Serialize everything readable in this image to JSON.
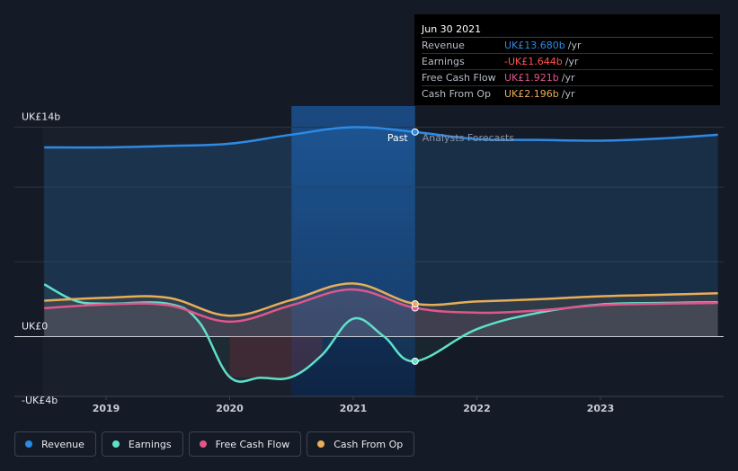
{
  "tooltip": {
    "date": "Jun 30 2021",
    "rows": [
      {
        "name": "Revenue",
        "value": "UK£13.680b",
        "unit": "/yr",
        "color": "#2d8ae5"
      },
      {
        "name": "Earnings",
        "value": "-UK£1.644b",
        "unit": "/yr",
        "color": "#ff5252"
      },
      {
        "name": "Free Cash Flow",
        "value": "UK£1.921b",
        "unit": "/yr",
        "color": "#e0568b"
      },
      {
        "name": "Cash From Op",
        "value": "UK£2.196b",
        "unit": "/yr",
        "color": "#e8ad58"
      }
    ]
  },
  "chart_data": {
    "type": "line",
    "y_tick_labels": [
      "UK£14b",
      "UK£0",
      "-UK£4b"
    ],
    "x_tick_labels": [
      "2019",
      "2020",
      "2021",
      "2022",
      "2023"
    ],
    "past_label": "Past",
    "forecast_label": "Analysts Forecasts",
    "ylim": [
      -4,
      14
    ],
    "xlim": [
      2018.5,
      2023.95
    ],
    "past_end": 2021.5,
    "series": [
      {
        "name": "Revenue",
        "color": "#2d8ae5",
        "points": [
          [
            2018.5,
            12.65
          ],
          [
            2019.0,
            12.65
          ],
          [
            2019.5,
            12.75
          ],
          [
            2020.0,
            12.9
          ],
          [
            2020.5,
            13.5
          ],
          [
            2021.0,
            14.0
          ],
          [
            2021.5,
            13.68
          ],
          [
            2022.0,
            13.2
          ],
          [
            2022.5,
            13.15
          ],
          [
            2023.0,
            13.1
          ],
          [
            2023.5,
            13.25
          ],
          [
            2023.95,
            13.5
          ]
        ]
      },
      {
        "name": "Earnings",
        "color": "#5fe0c9",
        "points": [
          [
            2018.5,
            3.5
          ],
          [
            2018.75,
            2.4
          ],
          [
            2019.0,
            2.2
          ],
          [
            2019.5,
            2.2
          ],
          [
            2019.75,
            1.0
          ],
          [
            2020.0,
            -2.7
          ],
          [
            2020.25,
            -2.75
          ],
          [
            2020.5,
            -2.7
          ],
          [
            2020.75,
            -1.2
          ],
          [
            2021.0,
            1.2
          ],
          [
            2021.25,
            0.0
          ],
          [
            2021.5,
            -1.644
          ],
          [
            2022.0,
            0.5
          ],
          [
            2022.5,
            1.6
          ],
          [
            2023.0,
            2.15
          ],
          [
            2023.5,
            2.25
          ],
          [
            2023.95,
            2.3
          ]
        ]
      },
      {
        "name": "Free Cash Flow",
        "color": "#e0568b",
        "points": [
          [
            2018.5,
            1.9
          ],
          [
            2019.0,
            2.15
          ],
          [
            2019.5,
            2.1
          ],
          [
            2020.0,
            1.0
          ],
          [
            2020.5,
            2.1
          ],
          [
            2021.0,
            3.15
          ],
          [
            2021.5,
            1.921
          ],
          [
            2022.0,
            1.6
          ],
          [
            2022.5,
            1.75
          ],
          [
            2023.0,
            2.1
          ],
          [
            2023.5,
            2.2
          ],
          [
            2023.95,
            2.25
          ]
        ]
      },
      {
        "name": "Cash From Op",
        "color": "#e8ad58",
        "points": [
          [
            2018.5,
            2.4
          ],
          [
            2019.0,
            2.6
          ],
          [
            2019.5,
            2.6
          ],
          [
            2020.0,
            1.4
          ],
          [
            2020.5,
            2.45
          ],
          [
            2021.0,
            3.55
          ],
          [
            2021.5,
            2.196
          ],
          [
            2022.0,
            2.35
          ],
          [
            2022.5,
            2.5
          ],
          [
            2023.0,
            2.7
          ],
          [
            2023.5,
            2.8
          ],
          [
            2023.95,
            2.9
          ]
        ]
      }
    ],
    "highlight_x": 2021.5,
    "highlight_values": {
      "Revenue": 13.68,
      "Earnings": -1.644,
      "Free Cash Flow": 1.921,
      "Cash From Op": 2.196
    }
  },
  "legend": [
    {
      "label": "Revenue",
      "color": "#2d8ae5"
    },
    {
      "label": "Earnings",
      "color": "#5fe0c9"
    },
    {
      "label": "Free Cash Flow",
      "color": "#e0568b"
    },
    {
      "label": "Cash From Op",
      "color": "#e8ad58"
    }
  ]
}
